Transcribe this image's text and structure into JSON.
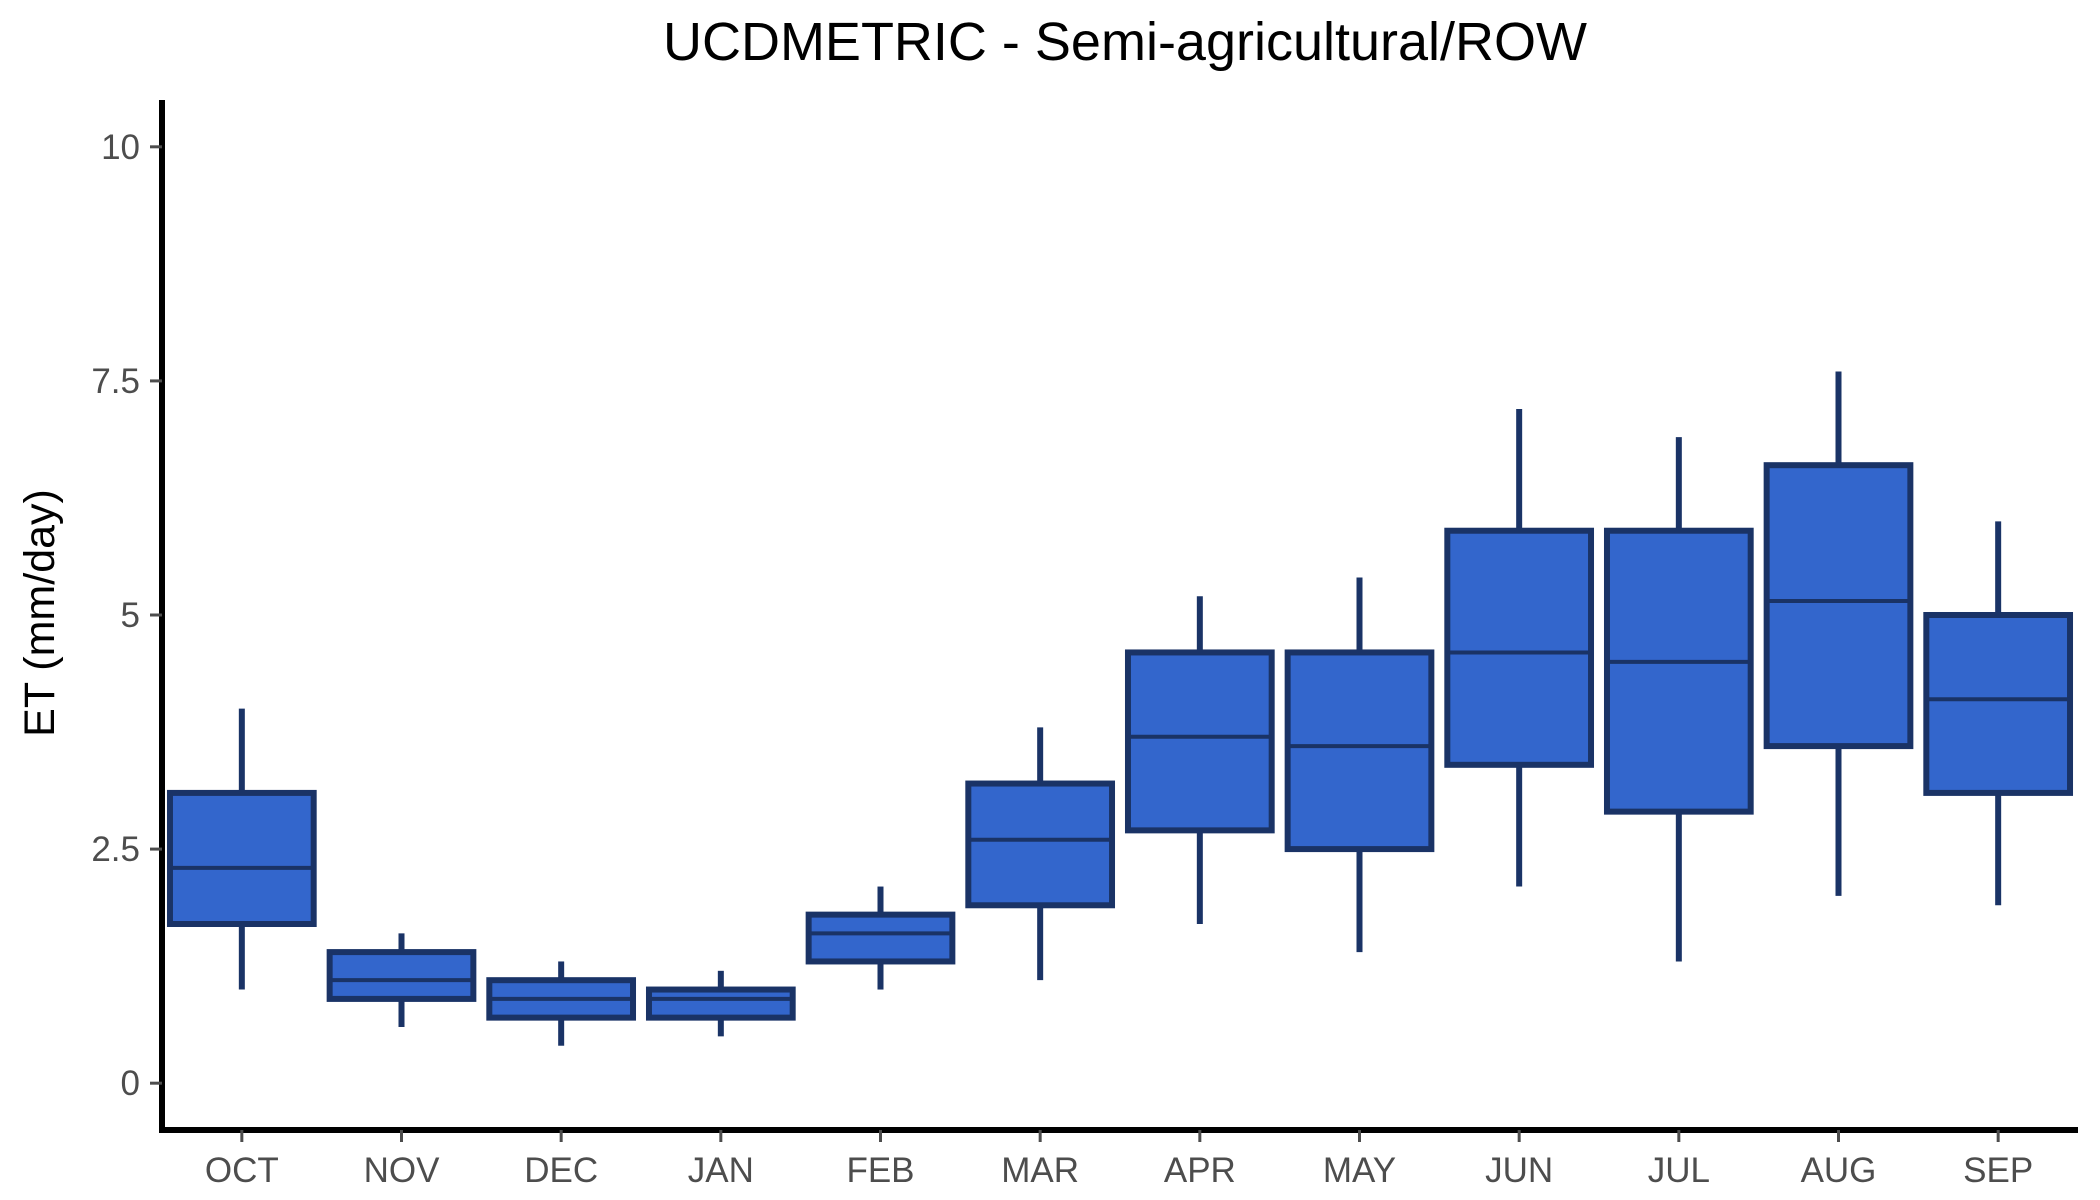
{
  "chart_data": {
    "type": "box",
    "title": "UCDMETRIC - Semi-agricultural/ROW",
    "xlabel": "",
    "ylabel": "ET (mm/day)",
    "ylim": [
      -0.5,
      10.5
    ],
    "yticks": [
      0,
      2.5,
      5,
      7.5,
      10
    ],
    "ytick_labels": [
      "0",
      "2.5",
      "5",
      "7.5",
      "10"
    ],
    "grid": false,
    "legend": "none",
    "colors": {
      "box_fill": "#3366cc",
      "box_stroke": "#1a3366",
      "axis": "#000000",
      "tick_label": "#4d4d4d"
    },
    "categories": [
      "OCT",
      "NOV",
      "DEC",
      "JAN",
      "FEB",
      "MAR",
      "APR",
      "MAY",
      "JUN",
      "JUL",
      "AUG",
      "SEP"
    ],
    "boxes": [
      {
        "label": "OCT",
        "min": 1.0,
        "q1": 1.7,
        "median": 2.3,
        "q3": 3.1,
        "max": 4.0
      },
      {
        "label": "NOV",
        "min": 0.6,
        "q1": 0.9,
        "median": 1.1,
        "q3": 1.4,
        "max": 1.6
      },
      {
        "label": "DEC",
        "min": 0.4,
        "q1": 0.7,
        "median": 0.9,
        "q3": 1.1,
        "max": 1.3
      },
      {
        "label": "JAN",
        "min": 0.5,
        "q1": 0.7,
        "median": 0.9,
        "q3": 1.0,
        "max": 1.2
      },
      {
        "label": "FEB",
        "min": 1.0,
        "q1": 1.3,
        "median": 1.6,
        "q3": 1.8,
        "max": 2.1
      },
      {
        "label": "MAR",
        "min": 1.1,
        "q1": 1.9,
        "median": 2.6,
        "q3": 3.2,
        "max": 3.8
      },
      {
        "label": "APR",
        "min": 1.7,
        "q1": 2.7,
        "median": 3.7,
        "q3": 4.6,
        "max": 5.2
      },
      {
        "label": "MAY",
        "min": 1.4,
        "q1": 2.5,
        "median": 3.6,
        "q3": 4.6,
        "max": 5.4
      },
      {
        "label": "JUN",
        "min": 2.1,
        "q1": 3.4,
        "median": 4.6,
        "q3": 5.9,
        "max": 7.2
      },
      {
        "label": "JUL",
        "min": 1.3,
        "q1": 2.9,
        "median": 4.5,
        "q3": 5.9,
        "max": 6.9
      },
      {
        "label": "AUG",
        "min": 2.0,
        "q1": 3.6,
        "median": 5.15,
        "q3": 6.6,
        "max": 7.6
      },
      {
        "label": "SEP",
        "min": 1.9,
        "q1": 3.1,
        "median": 4.1,
        "q3": 5.0,
        "max": 6.0
      }
    ]
  }
}
